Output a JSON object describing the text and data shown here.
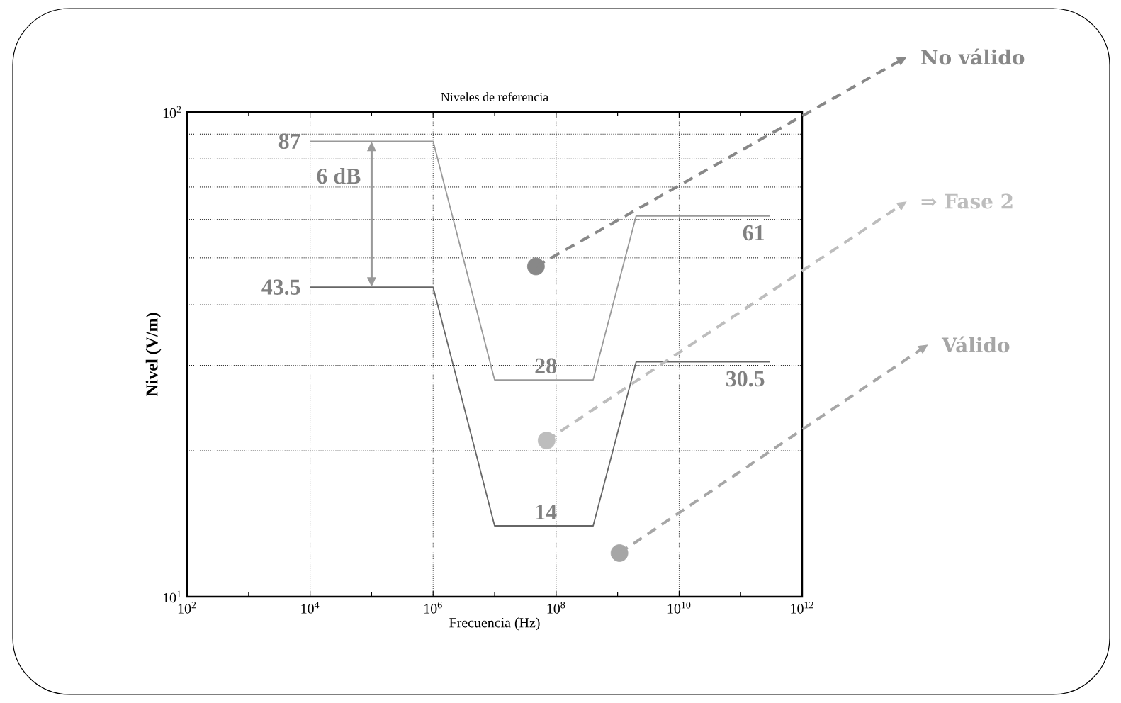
{
  "chart_data": {
    "type": "line",
    "title": "Niveles de referencia",
    "xlabel": "Frecuencia (Hz)",
    "ylabel": "Nivel (V/m)",
    "log": "xy",
    "grid": true,
    "legend": "right",
    "xlim": [
      100,
      1000000000000
    ],
    "ylim": [
      10,
      100
    ],
    "xticks": [
      {
        "value": 100,
        "label": "10$^{2}$"
      },
      {
        "value": 10000,
        "label": "10$^{4}$"
      },
      {
        "value": 1000000,
        "label": "10$^{6}$"
      },
      {
        "value": 100000000,
        "label": "10$^{8}$"
      },
      {
        "value": 10000000000,
        "label": "10$^{10}$"
      },
      {
        "value": 1000000000000,
        "label": "10$^{12}$"
      }
    ],
    "yticks": [
      {
        "value": 10,
        "label": "10$^{1}$"
      },
      {
        "value": 100,
        "label": "10$^{2}$"
      }
    ],
    "annotations": [
      "6 dB"
    ],
    "series": [
      {
        "color": "#999999",
        "x": [
          10000,
          1000000,
          10000000,
          400000000,
          2000000000,
          300000000000
        ],
        "values": [
          87,
          87,
          28,
          28,
          61,
          61
        ],
        "value_labels": [
          "87",
          null,
          null,
          "28",
          null,
          "61"
        ]
      },
      {
        "color": "#666666",
        "x": [
          10000,
          1000000,
          10000000,
          400000000,
          2000000000,
          300000000000
        ],
        "values": [
          43.5,
          43.5,
          14,
          14,
          30.5,
          30.5
        ],
        "value_labels": [
          "43.5",
          null,
          null,
          "14",
          null,
          "30.5"
        ]
      },
      {
        "type": "scatter",
        "name": "No válido",
        "color": "#888888",
        "x": [
          47000000
        ],
        "values": [
          48
        ]
      },
      {
        "type": "scatter",
        "name": "⇒ Fase 2",
        "color": "#bdbdbd",
        "x": [
          70000000
        ],
        "values": [
          21
        ]
      },
      {
        "type": "scatter",
        "name": "Válido",
        "color": "#a6a6a6",
        "x": [
          1070000000
        ],
        "values": [
          12.3
        ]
      }
    ]
  }
}
